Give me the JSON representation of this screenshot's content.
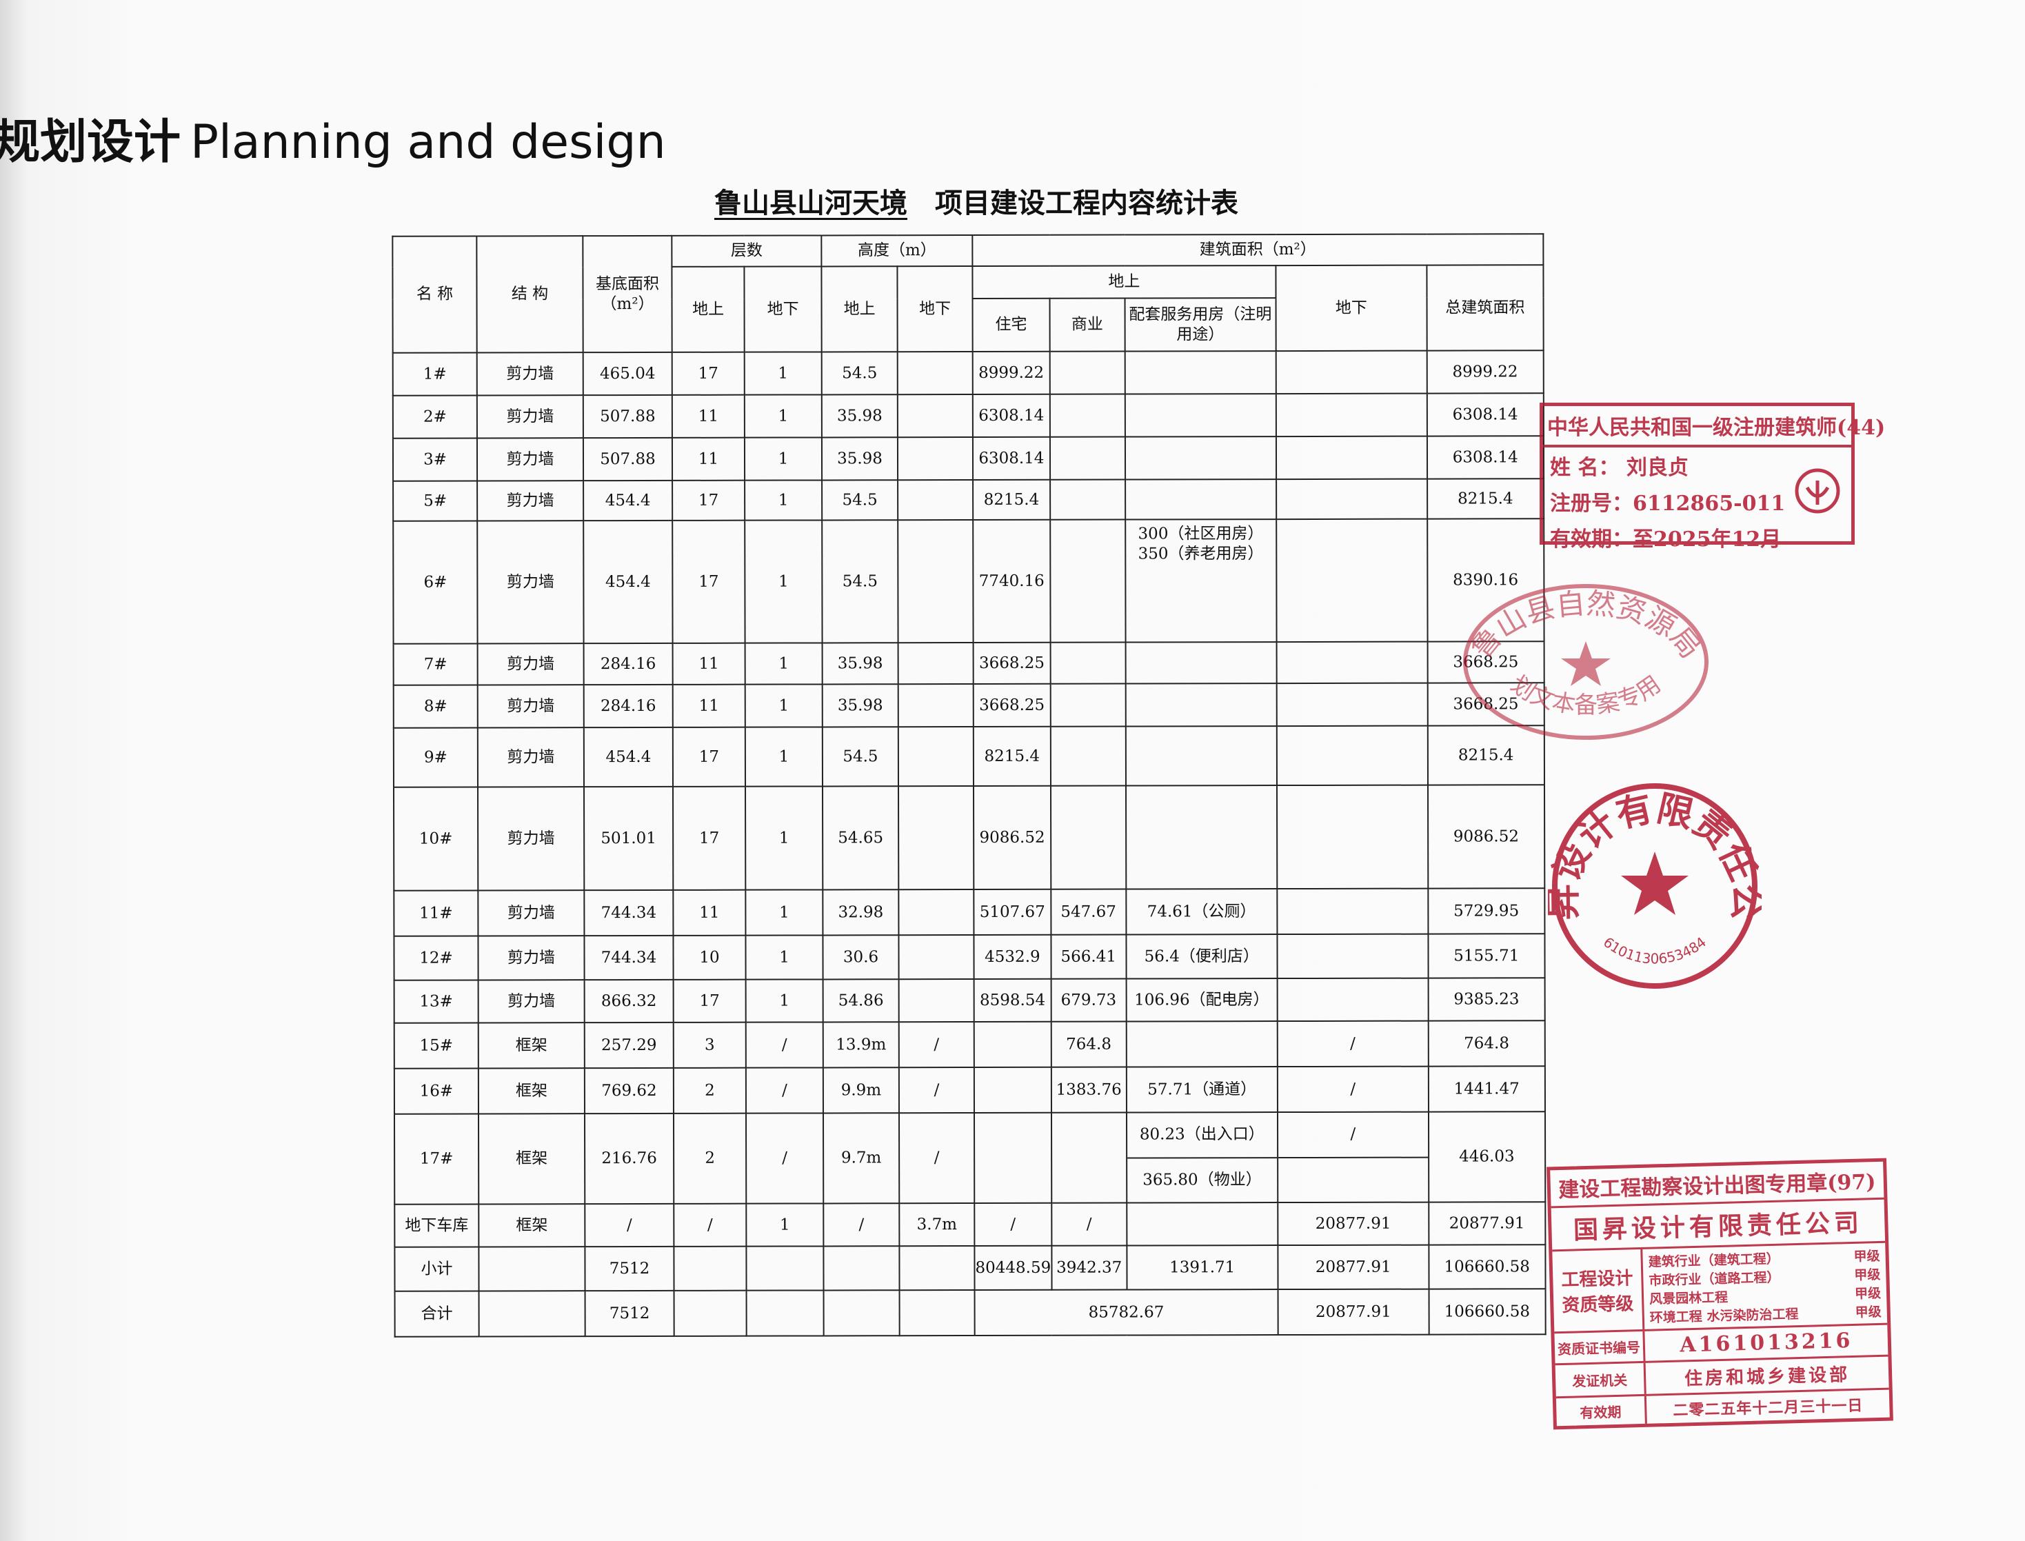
{
  "header": {
    "title_cn": "规划设计",
    "title_en": "Planning and design"
  },
  "table": {
    "title_underlined": "鲁山县山河天境",
    "title_rest": "项目建设工程内容统计表",
    "header": {
      "name": "名 称",
      "structure": "结 构",
      "base_area": "基底面积（m²）",
      "floors": "层数",
      "floors_above": "地上",
      "floors_below": "地下",
      "height": "高度（m）",
      "height_above": "地上",
      "height_below": "地下",
      "floor_area": "建筑面积（m²）",
      "area_above": "地上",
      "residential": "住宅",
      "commercial": "商业",
      "service": "配套服务用房（注明用途）",
      "underground": "地下",
      "total": "总建筑面积"
    },
    "rows": [
      [
        "1#",
        "剪力墙",
        465.04,
        17,
        1,
        54.5,
        null,
        8999.22,
        null,
        null,
        null,
        8999.22
      ],
      [
        "2#",
        "剪力墙",
        507.88,
        11,
        1,
        35.98,
        null,
        6308.14,
        null,
        null,
        null,
        6308.14
      ],
      [
        "3#",
        "剪力墙",
        507.88,
        11,
        1,
        35.98,
        null,
        6308.14,
        null,
        null,
        null,
        6308.14
      ],
      [
        "5#",
        "剪力墙",
        454.4,
        17,
        1,
        54.5,
        null,
        8215.4,
        null,
        null,
        null,
        8215.4
      ],
      [
        "6#",
        "剪力墙",
        454.4,
        17,
        1,
        54.5,
        null,
        7740.16,
        null,
        "300（社区用房）\n350（养老用房）",
        null,
        8390.16
      ],
      [
        "7#",
        "剪力墙",
        284.16,
        11,
        1,
        35.98,
        null,
        3668.25,
        null,
        null,
        null,
        3668.25
      ],
      [
        "8#",
        "剪力墙",
        284.16,
        11,
        1,
        35.98,
        null,
        3668.25,
        null,
        null,
        null,
        3668.25
      ],
      [
        "9#",
        "剪力墙",
        454.4,
        17,
        1,
        54.5,
        null,
        8215.4,
        null,
        null,
        null,
        8215.4
      ],
      [
        "10#",
        "剪力墙",
        501.01,
        17,
        1,
        54.65,
        null,
        9086.52,
        null,
        null,
        null,
        9086.52
      ],
      [
        "11#",
        "剪力墙",
        744.34,
        11,
        1,
        32.98,
        null,
        5107.67,
        547.67,
        "74.61（公厕）",
        null,
        5729.95
      ],
      [
        "12#",
        "剪力墙",
        744.34,
        10,
        1,
        30.6,
        null,
        4532.9,
        566.41,
        "56.4（便利店）",
        null,
        5155.71
      ],
      [
        "13#",
        "剪力墙",
        866.32,
        17,
        1,
        54.86,
        null,
        8598.54,
        679.73,
        "106.96（配电房）",
        null,
        9385.23
      ],
      [
        "15#",
        "框架",
        257.29,
        3,
        "/",
        "13.9m",
        "/",
        null,
        764.8,
        null,
        "/",
        764.8
      ],
      [
        "16#",
        "框架",
        769.62,
        2,
        "/",
        "9.9m",
        "/",
        null,
        1383.76,
        "57.71（通道）",
        "/",
        1441.47
      ],
      [
        "17#",
        "框架",
        216.76,
        2,
        "/",
        "9.7m",
        "/",
        null,
        null,
        [
          "80.23（出入口）",
          "365.80（物业）"
        ],
        [
          "/",
          null
        ],
        446.03
      ],
      [
        "地下车库",
        "框架",
        "/",
        "/",
        1,
        "/",
        "3.7m",
        "/",
        "/",
        null,
        20877.91,
        20877.91
      ],
      [
        "小计",
        null,
        7512,
        null,
        null,
        null,
        null,
        80448.59,
        3942.37,
        1391.71,
        20877.91,
        106660.58
      ],
      [
        "合计",
        null,
        7512,
        null,
        null,
        null,
        null,
        85782.67,
        null,
        null,
        20877.91,
        106660.58
      ]
    ]
  },
  "stamps": {
    "architect": {
      "title": "中华人民共和国一级注册建筑师(44)",
      "name_label": "姓 名：",
      "name": "刘良贞",
      "reg_label": "注册号：",
      "reg": "6112865-011",
      "valid_label": "有效期：",
      "valid": "至2025年12月"
    },
    "bureau": {
      "top": "鲁山县自然资源局",
      "bottom": "规划文本备案专用章"
    },
    "company": {
      "top": "国昇设计有限责任公司",
      "bottom": "6101130653484"
    },
    "drawing": {
      "title": "建设工程勘察设计出图专用章(97)",
      "company": "国昇设计有限责任公司",
      "grade_label": "工程设计资质等级",
      "scopes": [
        "建筑行业（建筑工程）",
        "市政行业（道路工程）",
        "风景园林工程",
        "环境工程 水污染防治工程"
      ],
      "grades": [
        "甲级",
        "甲级",
        "甲级",
        "甲级"
      ],
      "cert_label": "资质证书编号",
      "cert": "A161013216",
      "issuer_label": "发证机关",
      "issuer": "住房和城乡建设部",
      "valid_label": "有效期",
      "valid": "二零二五年十二月三十一日"
    }
  }
}
